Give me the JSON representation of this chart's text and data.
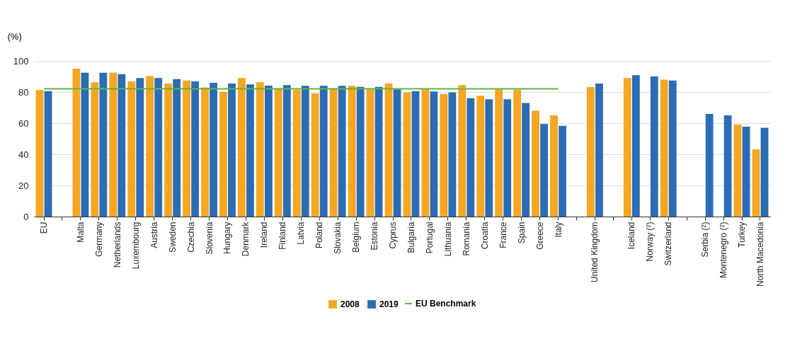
{
  "chart_data": {
    "type": "bar",
    "ylabel": "(%)",
    "categories": [
      "EU",
      null,
      "Malta",
      "Germany",
      "Netherlands",
      "Luxembourg",
      "Austria",
      "Sweden",
      "Czechia",
      "Slovenia",
      "Hungary",
      "Denmark",
      "Ireland",
      "Finland",
      "Latvia",
      "Poland",
      "Slovakia",
      "Belgium",
      "Estonia",
      "Cyprus",
      "Bulgaria",
      "Portugal",
      "Lithuania",
      "Romania",
      "Croatia",
      "France",
      "Spain",
      "Greece",
      "Italy",
      null,
      "United Kingdom",
      null,
      "Iceland",
      "Norway (²)",
      "Switzerland",
      null,
      "Serbia (²)",
      "Montenegro (²)",
      "Turkey",
      "North Macedonia"
    ],
    "series": [
      {
        "name": "2008",
        "color": "#f5a623",
        "values": [
          81.4,
          null,
          95,
          86.2,
          92.4,
          86.8,
          90.2,
          85.5,
          87.4,
          82.9,
          80.1,
          89,
          86.2,
          82.1,
          81.4,
          79.1,
          81.7,
          84,
          81.7,
          85.6,
          79.8,
          81.7,
          78.8,
          84.4,
          77.6,
          81.7,
          81.4,
          68,
          65,
          null,
          83.2,
          null,
          89,
          null,
          87.9,
          null,
          null,
          null,
          59.1,
          43.2
        ]
      },
      {
        "name": "2019",
        "color": "#2b6cb5",
        "values": [
          80.6,
          null,
          92.4,
          92.4,
          91.5,
          89,
          89,
          88.3,
          86.8,
          85.9,
          85.5,
          84.9,
          84.1,
          84.4,
          84,
          84,
          84,
          83.3,
          83.3,
          81.7,
          80.6,
          80.3,
          79.8,
          76,
          75.3,
          75.3,
          73,
          59.4,
          58.3,
          null,
          85.5,
          null,
          90.8,
          90,
          87.4,
          null,
          65.9,
          65,
          57.7,
          57.1
        ]
      },
      {
        "name": "EU Benchmark",
        "type": "line",
        "color": "#5cb83a",
        "values": [
          82,
          null,
          82,
          82,
          82,
          82,
          82,
          82,
          82,
          82,
          82,
          82,
          82,
          82,
          82,
          82,
          82,
          82,
          82,
          82,
          82,
          82,
          82,
          82,
          82,
          82,
          82,
          82,
          82,
          null,
          null,
          null,
          null,
          null,
          null,
          null,
          null,
          null,
          null,
          null
        ]
      }
    ],
    "ylim": [
      0,
      100
    ],
    "yticks": [
      0,
      20,
      40,
      60,
      80,
      100
    ],
    "grid": "y",
    "legend": "bottom"
  }
}
